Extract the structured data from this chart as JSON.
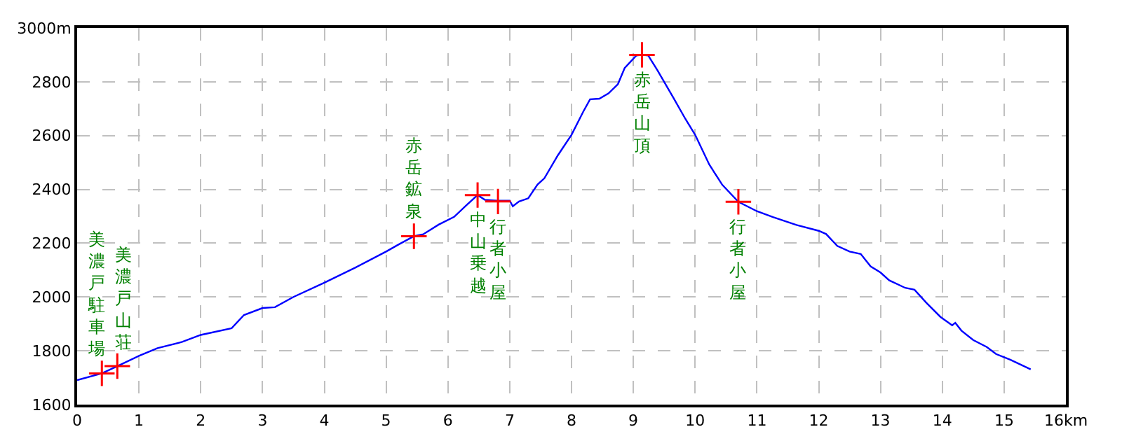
{
  "chart_data": {
    "type": "line",
    "xlim": [
      0,
      16
    ],
    "xticks": [
      0,
      1,
      2,
      3,
      4,
      5,
      6,
      7,
      8,
      9,
      10,
      11,
      12,
      13,
      14,
      15,
      {
        "value": 16,
        "label": "16km"
      }
    ],
    "ylim": [
      1600,
      3000
    ],
    "yticks": [
      1600,
      1800,
      2000,
      2200,
      2400,
      2600,
      2800,
      {
        "value": 3000,
        "label": "3000m"
      }
    ],
    "grid": true,
    "series": [
      {
        "color": "#0000ff",
        "marker": "none",
        "x": [
          0,
          0.4,
          0.65,
          1.0,
          1.3,
          1.7,
          2.0,
          2.5,
          2.7,
          3.0,
          3.2,
          3.5,
          4.0,
          4.5,
          5.0,
          5.2,
          5.45,
          5.6,
          5.85,
          6.1,
          6.3,
          6.48,
          6.6,
          6.8,
          7.0,
          7.05,
          7.15,
          7.3,
          7.45,
          7.56,
          7.78,
          8.0,
          8.19,
          8.3,
          8.45,
          8.6,
          8.75,
          8.86,
          9.05,
          9.14,
          9.24,
          9.39,
          9.65,
          9.84,
          10.0,
          10.23,
          10.44,
          10.7,
          11.0,
          11.26,
          11.64,
          12.0,
          12.12,
          12.3,
          12.5,
          12.68,
          12.84,
          13.0,
          13.14,
          13.4,
          13.55,
          13.74,
          13.97,
          14.16,
          14.21,
          14.31,
          14.5,
          14.72,
          14.87,
          15.1,
          15.43
        ],
        "values": [
          1691,
          1716,
          1743,
          1781,
          1810,
          1833,
          1859,
          1884,
          1933,
          1959,
          1962,
          2000,
          2053,
          2109,
          2169,
          2195,
          2226,
          2233,
          2269,
          2298,
          2341,
          2379,
          2361,
          2358,
          2358,
          2337,
          2355,
          2367,
          2418,
          2441,
          2527,
          2603,
          2689,
          2735,
          2737,
          2757,
          2791,
          2851,
          2898,
          2900,
          2898,
          2843,
          2740,
          2663,
          2603,
          2492,
          2417,
          2354,
          2319,
          2297,
          2268,
          2246,
          2234,
          2190,
          2169,
          2160,
          2114,
          2091,
          2062,
          2034,
          2027,
          1979,
          1926,
          1895,
          1904,
          1875,
          1840,
          1814,
          1788,
          1767,
          1731
        ]
      },
      {
        "type": "scatter",
        "color": "#ff0000",
        "marker": "cross",
        "x": [
          0.4,
          0.65,
          5.45,
          6.48,
          6.81,
          9.14,
          10.7
        ],
        "values": [
          1716,
          1743,
          2226,
          2379,
          2355,
          2900,
          2354
        ]
      }
    ],
    "annotations": [
      {
        "text": "美濃戸駐車場",
        "x": 0.4,
        "y": 1716
      },
      {
        "text": "美濃戸山荘",
        "x": 0.65,
        "y": 1743
      },
      {
        "text": "赤岳鉱泉",
        "x": 5.45,
        "y": 2226
      },
      {
        "text": "中山乗越",
        "x": 6.48,
        "y": 2379
      },
      {
        "text": "行者小屋",
        "x": 6.81,
        "y": 2355
      },
      {
        "text": "赤岳山頂",
        "x": 9.14,
        "y": 2900
      },
      {
        "text": "行者小屋",
        "x": 10.7,
        "y": 2354
      }
    ]
  }
}
